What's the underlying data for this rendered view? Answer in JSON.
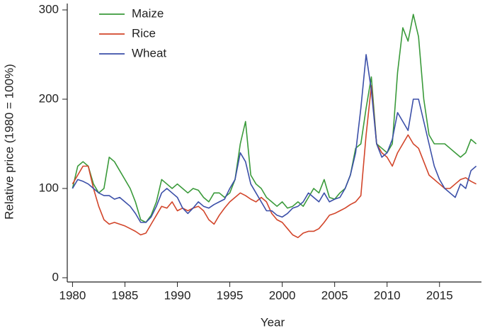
{
  "chart_data": {
    "type": "line",
    "xlabel": "Year",
    "ylabel": "Relative price (1980 = 100%)",
    "x": [
      1980,
      1980.5,
      1981,
      1981.5,
      1982,
      1982.5,
      1983,
      1983.5,
      1984,
      1984.5,
      1985,
      1985.5,
      1986,
      1986.5,
      1987,
      1987.5,
      1988,
      1988.5,
      1989,
      1989.5,
      1990,
      1990.5,
      1991,
      1991.5,
      1992,
      1992.5,
      1993,
      1993.5,
      1994,
      1994.5,
      1995,
      1995.5,
      1996,
      1996.5,
      1997,
      1997.5,
      1998,
      1998.5,
      1999,
      1999.5,
      2000,
      2000.5,
      2001,
      2001.5,
      2002,
      2002.5,
      2003,
      2003.5,
      2004,
      2004.5,
      2005,
      2005.5,
      2006,
      2006.5,
      2007,
      2007.5,
      2008,
      2008.5,
      2009,
      2009.5,
      2010,
      2010.5,
      2011,
      2011.5,
      2012,
      2012.5,
      2013,
      2013.5,
      2014,
      2014.5,
      2015,
      2015.5,
      2016,
      2016.5,
      2017,
      2017.5,
      2018,
      2018.5
    ],
    "series": [
      {
        "name": "Maize",
        "color": "#3a9a3a",
        "values": [
          100,
          125,
          130,
          125,
          105,
          95,
          100,
          135,
          130,
          120,
          110,
          100,
          85,
          65,
          62,
          70,
          85,
          110,
          105,
          100,
          105,
          100,
          95,
          100,
          98,
          90,
          85,
          95,
          95,
          90,
          95,
          110,
          150,
          175,
          115,
          105,
          100,
          90,
          85,
          80,
          85,
          78,
          80,
          85,
          80,
          90,
          100,
          95,
          110,
          90,
          88,
          95,
          100,
          115,
          145,
          150,
          190,
          225,
          150,
          145,
          140,
          150,
          230,
          280,
          265,
          295,
          270,
          200,
          160,
          150,
          150,
          150,
          145,
          140,
          135,
          140,
          155,
          150
        ]
      },
      {
        "name": "Rice",
        "color": "#d2452a",
        "values": [
          105,
          115,
          125,
          125,
          100,
          80,
          65,
          60,
          62,
          60,
          58,
          55,
          52,
          48,
          50,
          60,
          70,
          80,
          78,
          85,
          75,
          78,
          75,
          78,
          80,
          75,
          65,
          60,
          70,
          78,
          85,
          90,
          95,
          92,
          88,
          85,
          90,
          85,
          72,
          65,
          62,
          55,
          48,
          45,
          50,
          52,
          52,
          55,
          62,
          70,
          72,
          75,
          78,
          82,
          85,
          92,
          160,
          215,
          150,
          140,
          135,
          125,
          140,
          150,
          160,
          150,
          145,
          130,
          115,
          110,
          105,
          100,
          100,
          105,
          110,
          112,
          108,
          105
        ]
      },
      {
        "name": "Wheat",
        "color": "#3b4fa8",
        "values": [
          100,
          110,
          108,
          105,
          100,
          95,
          92,
          92,
          88,
          90,
          85,
          80,
          72,
          62,
          62,
          68,
          80,
          95,
          100,
          95,
          90,
          78,
          72,
          78,
          85,
          80,
          78,
          82,
          85,
          88,
          100,
          110,
          140,
          130,
          105,
          95,
          85,
          75,
          75,
          70,
          68,
          72,
          78,
          80,
          85,
          95,
          90,
          85,
          95,
          85,
          88,
          90,
          100,
          115,
          140,
          190,
          250,
          210,
          150,
          135,
          140,
          155,
          185,
          175,
          165,
          200,
          200,
          175,
          150,
          125,
          110,
          100,
          95,
          90,
          105,
          100,
          120,
          125
        ]
      }
    ],
    "xlim": [
      1979.5,
      2019
    ],
    "xticks": [
      1980,
      1985,
      1990,
      1995,
      2000,
      2005,
      2010,
      2015
    ],
    "ylim": [
      0,
      300
    ],
    "yticks": [
      0,
      100,
      200,
      300
    ],
    "legend": "upper left"
  }
}
